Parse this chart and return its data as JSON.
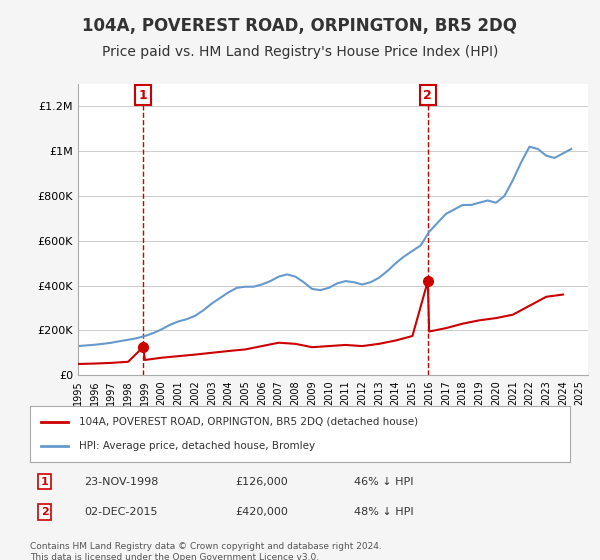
{
  "title": "104A, POVEREST ROAD, ORPINGTON, BR5 2DQ",
  "subtitle": "Price paid vs. HM Land Registry's House Price Index (HPI)",
  "title_fontsize": 12,
  "subtitle_fontsize": 10,
  "sale1_date": "23-NOV-1998",
  "sale1_price": 126000,
  "sale1_label": "1",
  "sale2_date": "02-DEC-2015",
  "sale2_price": 420000,
  "sale2_label": "2",
  "sale1_year": 1998.9,
  "sale2_year": 2015.92,
  "hpi_years": [
    1995,
    1995.5,
    1996,
    1996.5,
    1997,
    1997.5,
    1998,
    1998.5,
    1999,
    1999.5,
    2000,
    2000.5,
    2001,
    2001.5,
    2002,
    2002.5,
    2003,
    2003.5,
    2004,
    2004.5,
    2005,
    2005.5,
    2006,
    2006.5,
    2007,
    2007.5,
    2008,
    2008.5,
    2009,
    2009.5,
    2010,
    2010.5,
    2011,
    2011.5,
    2012,
    2012.5,
    2013,
    2013.5,
    2014,
    2014.5,
    2015,
    2015.5,
    2016,
    2016.5,
    2017,
    2017.5,
    2018,
    2018.5,
    2019,
    2019.5,
    2020,
    2020.5,
    2021,
    2021.5,
    2022,
    2022.5,
    2023,
    2023.5,
    2024,
    2024.5
  ],
  "hpi_values": [
    130000,
    133000,
    136000,
    140000,
    145000,
    152000,
    158000,
    165000,
    175000,
    188000,
    205000,
    225000,
    240000,
    250000,
    265000,
    290000,
    320000,
    345000,
    370000,
    390000,
    395000,
    395000,
    405000,
    420000,
    440000,
    450000,
    440000,
    415000,
    385000,
    380000,
    390000,
    410000,
    420000,
    415000,
    405000,
    415000,
    435000,
    465000,
    500000,
    530000,
    555000,
    580000,
    640000,
    680000,
    720000,
    740000,
    760000,
    760000,
    770000,
    780000,
    770000,
    800000,
    870000,
    950000,
    1020000,
    1010000,
    980000,
    970000,
    990000,
    1010000
  ],
  "red_years": [
    1995,
    1996,
    1997,
    1998,
    1998.9,
    1999,
    2000,
    2001,
    2002,
    2003,
    2004,
    2005,
    2006,
    2007,
    2008,
    2009,
    2010,
    2011,
    2012,
    2013,
    2014,
    2015,
    2015.92,
    2016,
    2017,
    2018,
    2019,
    2020,
    2021,
    2022,
    2023,
    2024
  ],
  "red_values": [
    50000,
    52000,
    55000,
    60000,
    126000,
    68000,
    78000,
    85000,
    92000,
    100000,
    108000,
    115000,
    130000,
    145000,
    140000,
    125000,
    130000,
    135000,
    130000,
    140000,
    155000,
    175000,
    420000,
    195000,
    210000,
    230000,
    245000,
    255000,
    270000,
    310000,
    350000,
    360000
  ],
  "legend_red_label": "104A, POVEREST ROAD, ORPINGTON, BR5 2DQ (detached house)",
  "legend_blue_label": "HPI: Average price, detached house, Bromley",
  "footer1": "Contains HM Land Registry data © Crown copyright and database right 2024.",
  "footer2": "This data is licensed under the Open Government Licence v3.0.",
  "red_color": "#cc0000",
  "blue_color": "#6699cc",
  "marker_color": "#cc0000",
  "dashed_color": "#cc0000",
  "bg_color": "#f5f5f5",
  "plot_bg": "#ffffff",
  "ylim": [
    0,
    1300000
  ],
  "xlim": [
    1995,
    2025.5
  ],
  "yticks": [
    0,
    200000,
    400000,
    600000,
    800000,
    1000000,
    1200000
  ],
  "ytick_labels": [
    "£0",
    "£200K",
    "£400K",
    "£600K",
    "£800K",
    "£1M",
    "£1.2M"
  ],
  "xtick_years": [
    1995,
    1996,
    1997,
    1998,
    1999,
    2000,
    2001,
    2002,
    2003,
    2004,
    2005,
    2006,
    2007,
    2008,
    2009,
    2010,
    2011,
    2012,
    2013,
    2014,
    2015,
    2016,
    2017,
    2018,
    2019,
    2020,
    2021,
    2022,
    2023,
    2024,
    2025
  ],
  "grid_color": "#cccccc",
  "annotation_box_color": "#cc0000",
  "annotation_bg": "#ffffff"
}
